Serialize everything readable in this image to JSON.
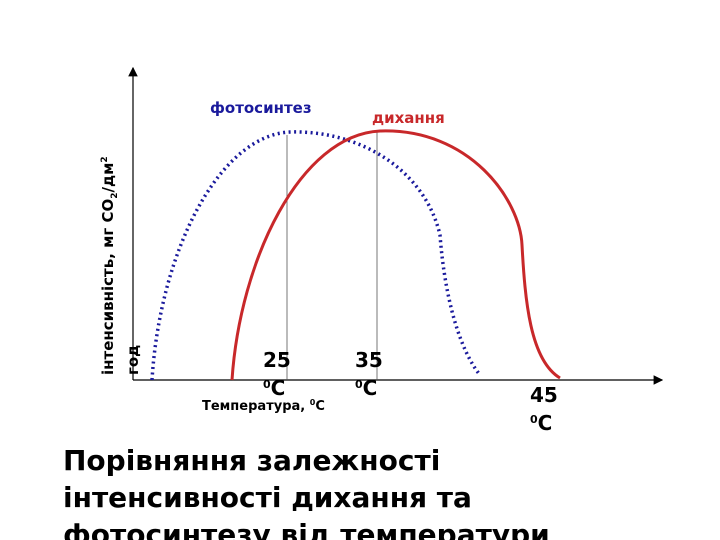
{
  "diagram": {
    "curves": [
      {
        "label": "фотосинтез",
        "color": "#1a1a9c"
      },
      {
        "label": "дихання",
        "color": "#c8282a"
      }
    ],
    "y_axis_label": {
      "parts": [
        "інтенсивність, мг СО",
        "2",
        "/дм",
        "2"
      ],
      "line2": "год"
    },
    "x_axis_label": {
      "text": "Температура, ",
      "sup": "0",
      "unit": "С"
    },
    "markers": [
      {
        "value": "25",
        "sup": "0",
        "unit": "С"
      },
      {
        "value": "35",
        "sup": "0",
        "unit": "С"
      },
      {
        "value": "45",
        "sup": "0",
        "unit": "С"
      }
    ],
    "caption": [
      "Порівняння залежності",
      "інтенсивності  дихання та",
      "фотосинтезу від температури"
    ]
  }
}
